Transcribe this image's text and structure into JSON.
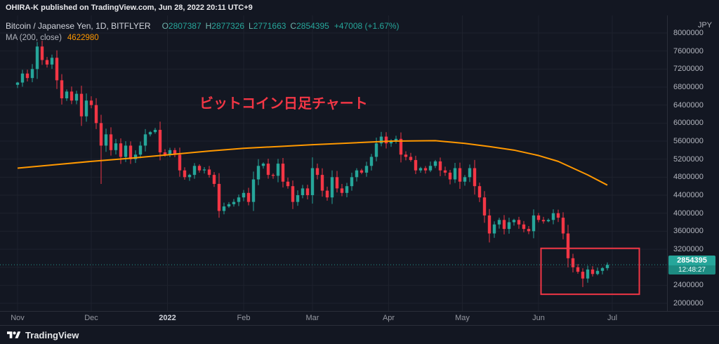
{
  "publish_bar": {
    "text": "OHIRA-K published on TradingView.com, Jun 28, 2022 20:11 UTC+9"
  },
  "legend": {
    "symbol": "Bitcoin / Japanese Yen, 1D, BITFLYER",
    "ohlc": [
      {
        "label": "O",
        "value": "2807387"
      },
      {
        "label": "H",
        "value": "2877326"
      },
      {
        "label": "L",
        "value": "2771663"
      },
      {
        "label": "C",
        "value": "2854395"
      }
    ],
    "change": "+47008 (+1.67%)",
    "ma_label": "MA (200, close)",
    "ma_value": "4622980"
  },
  "axis": {
    "currency": "JPY"
  },
  "price_label": {
    "price": "2854395",
    "countdown": "12:48:27"
  },
  "footer": {
    "brand": "TradingView"
  },
  "colors": {
    "background": "#131722",
    "up": "#26a69a",
    "down": "#f23645",
    "ma": "#ff9800",
    "annotation": "#f23645",
    "grid": "#1e222d",
    "axis_text": "#b2b5be"
  },
  "chart_data": {
    "type": "candlestick",
    "title": "Bitcoin / Japanese Yen, 1D, BITFLYER",
    "interval": "1D",
    "currency": "JPY",
    "ohlc_today": {
      "open": 2807387,
      "high": 2877326,
      "low": 2771663,
      "close": 2854395,
      "change": 47008,
      "change_pct": 1.67
    },
    "x_start": "2021-11-01",
    "x_step_days": 2,
    "first_open": 6850000,
    "closes": [
      6900000,
      7100000,
      7000000,
      7200000,
      7700000,
      7400000,
      7300000,
      7450000,
      6950000,
      6550000,
      6700000,
      6500000,
      6650000,
      6150000,
      6500000,
      6400000,
      6000000,
      5500000,
      5750000,
      5400000,
      5550000,
      5250000,
      5500000,
      5200000,
      5300000,
      5500000,
      5750000,
      5800000,
      5850000,
      5350000,
      5300000,
      5400000,
      5300000,
      4950000,
      4800000,
      4850000,
      5050000,
      4950000,
      4970000,
      4850000,
      4650000,
      4050000,
      4150000,
      4200000,
      4250000,
      4350000,
      4450000,
      4250000,
      4750000,
      5050000,
      5100000,
      4850000,
      4830000,
      5100000,
      4700000,
      4600000,
      4250000,
      4400000,
      4550000,
      4400000,
      5000000,
      4850000,
      4500000,
      4350000,
      4800000,
      4550000,
      4450000,
      4600000,
      4800000,
      4950000,
      4900000,
      5050000,
      5250000,
      5550000,
      5700000,
      5550000,
      5600000,
      5650000,
      5300000,
      5250000,
      5180000,
      4950000,
      5000000,
      4950000,
      5050000,
      5150000,
      4950000,
      4900000,
      4750000,
      5000000,
      4700000,
      4800000,
      5000000,
      4600000,
      4350000,
      3950000,
      3550000,
      3750000,
      3850000,
      3650000,
      3800000,
      3850000,
      3750000,
      3650000,
      3600000,
      3950000,
      3850000,
      3820000,
      3850000,
      4000000,
      3900000,
      3550000,
      3000000,
      2800000,
      2700000,
      2550000,
      2750000,
      2650000,
      2720000,
      2780000,
      2854395
    ],
    "wick_overrides": {
      "4": {
        "high": 7800000
      },
      "17": {
        "low": 4650000
      },
      "41": {
        "low": 3900000
      },
      "96": {
        "low": 3350000
      },
      "115": {
        "low": 2360000
      }
    },
    "ma200": {
      "period": 200,
      "source": "close",
      "value": 4622980,
      "color": "#ff9800",
      "points": [
        [
          0,
          5000000
        ],
        [
          8,
          5080000
        ],
        [
          15,
          5150000
        ],
        [
          23,
          5220000
        ],
        [
          31,
          5300000
        ],
        [
          39,
          5380000
        ],
        [
          46,
          5440000
        ],
        [
          53,
          5480000
        ],
        [
          60,
          5520000
        ],
        [
          68,
          5560000
        ],
        [
          76,
          5600000
        ],
        [
          85,
          5610000
        ],
        [
          91,
          5550000
        ],
        [
          96,
          5480000
        ],
        [
          101,
          5400000
        ],
        [
          106,
          5280000
        ],
        [
          110,
          5150000
        ],
        [
          113,
          5000000
        ],
        [
          116,
          4850000
        ],
        [
          120,
          4622980
        ]
      ]
    },
    "ylim": [
      2000000,
      8200000
    ],
    "y_ticks": [
      8000000,
      7600000,
      7200000,
      6800000,
      6400000,
      6000000,
      5600000,
      5200000,
      4800000,
      4400000,
      4000000,
      3600000,
      3200000,
      2800000,
      2400000,
      2000000
    ],
    "time_ticks": [
      {
        "label": "Nov",
        "i": 0
      },
      {
        "label": "Dec",
        "i": 15
      },
      {
        "label": "2022",
        "i": 30.5,
        "major": true
      },
      {
        "label": "Feb",
        "i": 46
      },
      {
        "label": "Mar",
        "i": 60
      },
      {
        "label": "Apr",
        "i": 75.5
      },
      {
        "label": "May",
        "i": 90.5
      },
      {
        "label": "Jun",
        "i": 106
      },
      {
        "label": "Jul",
        "i": 121
      }
    ],
    "annotations": [
      {
        "type": "text",
        "text": "ビットコイン日足チャート",
        "i": 37,
        "price": 6330000,
        "color": "#f23645"
      },
      {
        "type": "rect",
        "i1": 106.5,
        "i2": 126.5,
        "price_top": 3220000,
        "price_bottom": 2200000,
        "color": "#f23645"
      },
      {
        "type": "price_line",
        "price": 2854395,
        "color": "#26a69a"
      }
    ],
    "legend_position": "top-left",
    "grid": true
  }
}
